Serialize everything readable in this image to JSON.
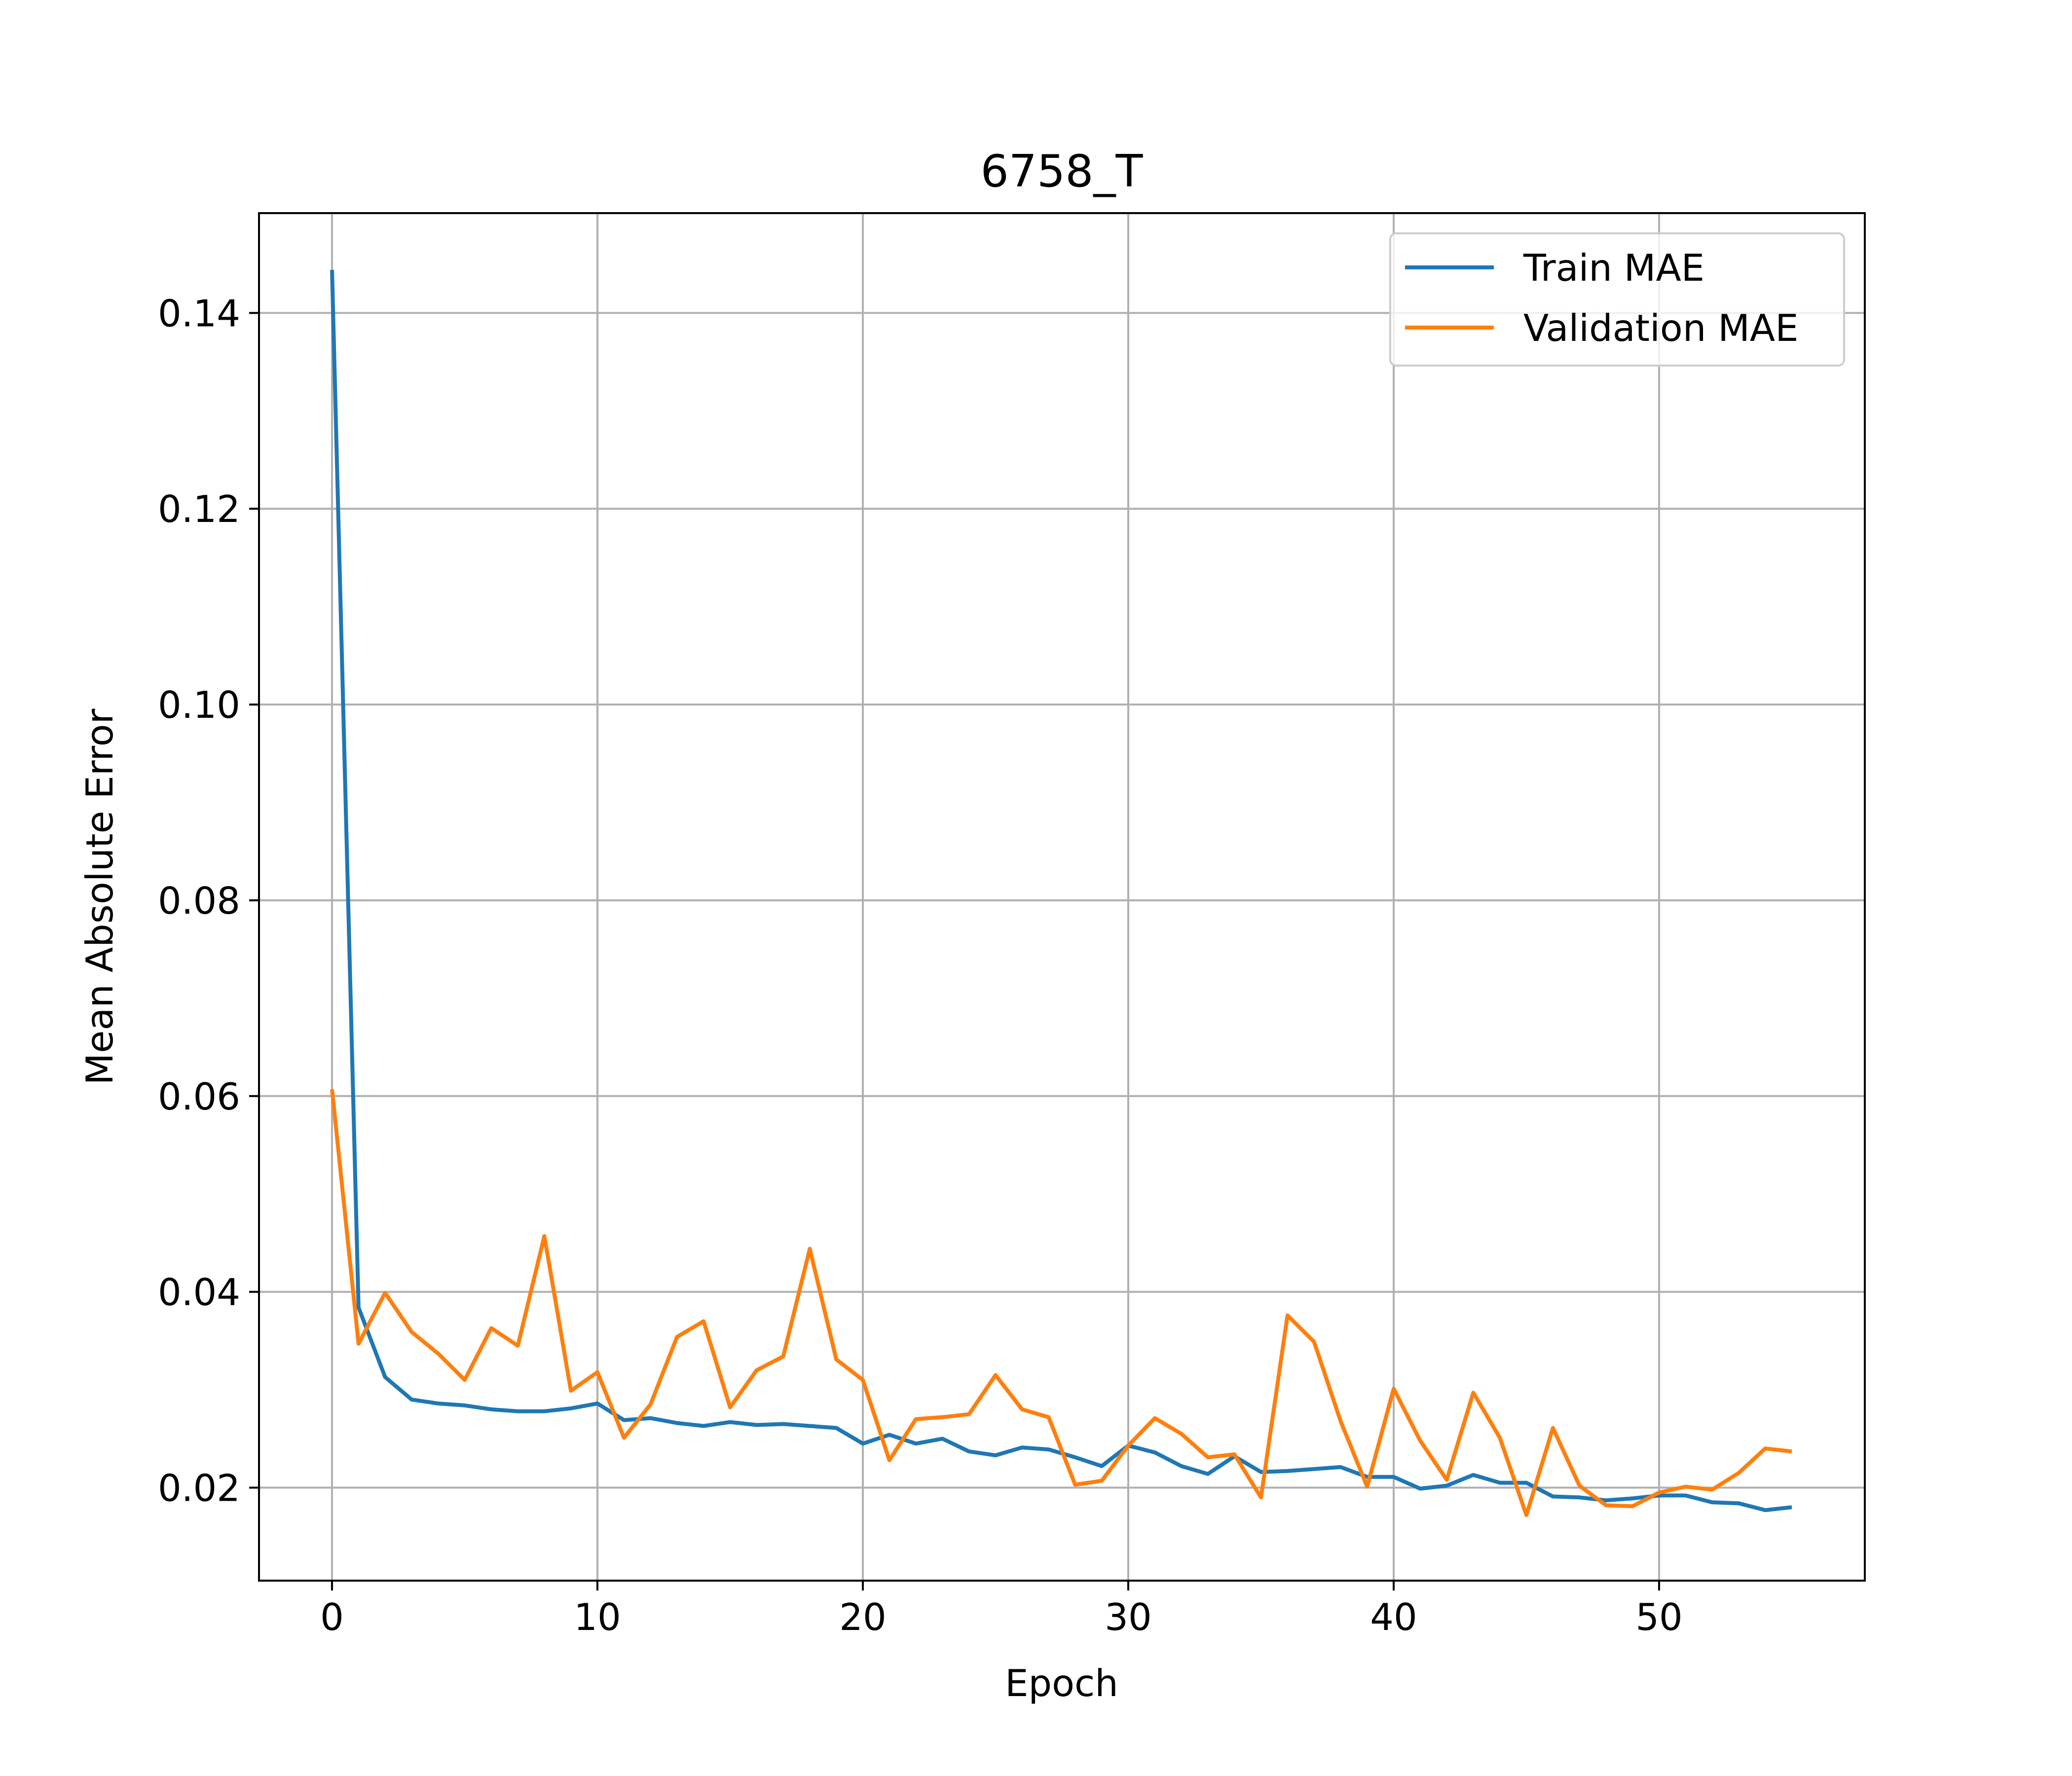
{
  "chart_data": {
    "type": "line",
    "title": "6758_T",
    "xlabel": "Epoch",
    "ylabel": "Mean Absolute Error",
    "xlim": [
      -2.75,
      57.75
    ],
    "ylim": [
      0.0105,
      0.1502
    ],
    "xticks": [
      0,
      10,
      20,
      30,
      40,
      50
    ],
    "yticks": [
      0.02,
      0.04,
      0.06,
      0.08,
      0.1,
      0.12,
      0.14
    ],
    "xtick_labels": [
      "0",
      "10",
      "20",
      "30",
      "40",
      "50"
    ],
    "ytick_labels": [
      "0.02",
      "0.04",
      "0.06",
      "0.08",
      "0.10",
      "0.12",
      "0.14"
    ],
    "grid": true,
    "legend_position": "top-right",
    "x": [
      0,
      1,
      2,
      3,
      4,
      5,
      6,
      7,
      8,
      9,
      10,
      11,
      12,
      13,
      14,
      15,
      16,
      17,
      18,
      19,
      20,
      21,
      22,
      23,
      24,
      25,
      26,
      27,
      28,
      29,
      30,
      31,
      32,
      33,
      34,
      35,
      36,
      37,
      38,
      39,
      40,
      41,
      42,
      43,
      44,
      45,
      46,
      47,
      48,
      49,
      50,
      51,
      52,
      53,
      54,
      55
    ],
    "series": [
      {
        "name": "Train MAE",
        "color": "#1f77b4",
        "values": [
          0.1444,
          0.0384,
          0.0313,
          0.029,
          0.0286,
          0.0284,
          0.028,
          0.0278,
          0.0278,
          0.0281,
          0.0286,
          0.0269,
          0.0271,
          0.0266,
          0.0263,
          0.0267,
          0.0264,
          0.0265,
          0.0263,
          0.0261,
          0.0245,
          0.0254,
          0.0245,
          0.025,
          0.0237,
          0.0233,
          0.0241,
          0.0239,
          0.0231,
          0.0222,
          0.0243,
          0.0236,
          0.0222,
          0.0214,
          0.0232,
          0.0216,
          0.0217,
          0.0219,
          0.0221,
          0.0211,
          0.0211,
          0.0199,
          0.0202,
          0.0213,
          0.0205,
          0.0205,
          0.0191,
          0.019,
          0.0187,
          0.0189,
          0.0192,
          0.0192,
          0.0185,
          0.0184,
          0.0177,
          0.018
        ]
      },
      {
        "name": "Validation MAE",
        "color": "#ff7f0e",
        "values": [
          0.0607,
          0.0347,
          0.0399,
          0.0359,
          0.0337,
          0.031,
          0.0363,
          0.0345,
          0.0457,
          0.0299,
          0.0318,
          0.0251,
          0.0285,
          0.0354,
          0.037,
          0.0282,
          0.032,
          0.0334,
          0.0444,
          0.0331,
          0.031,
          0.0228,
          0.027,
          0.0272,
          0.0275,
          0.0315,
          0.028,
          0.0272,
          0.0203,
          0.0207,
          0.0243,
          0.0271,
          0.0255,
          0.0231,
          0.0234,
          0.019,
          0.0376,
          0.0349,
          0.0268,
          0.0201,
          0.0301,
          0.0248,
          0.0208,
          0.0297,
          0.0251,
          0.0172,
          0.0261,
          0.0202,
          0.0182,
          0.0181,
          0.0195,
          0.0201,
          0.0198,
          0.0215,
          0.024,
          0.0237
        ]
      }
    ]
  }
}
